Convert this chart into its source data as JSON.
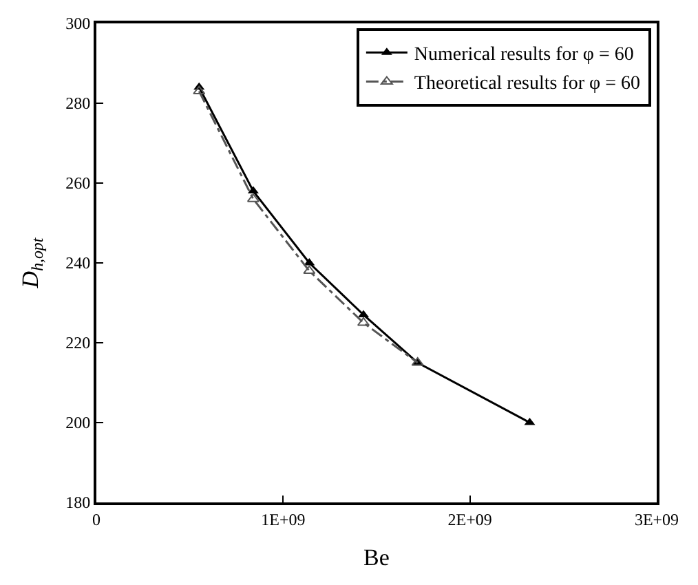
{
  "chart_data": {
    "type": "line",
    "xlabel": "Be",
    "ylabel": "D$_{h,opt}$",
    "xlim": [
      0,
      3000000000
    ],
    "xticks": [
      0,
      {
        "value": 1000000000,
        "label": "1E+09"
      },
      {
        "value": 2000000000,
        "label": "2E+09"
      },
      {
        "value": 3000000000,
        "label": "3E+09"
      }
    ],
    "ylim": [
      180,
      300
    ],
    "yticks": [
      180,
      200,
      220,
      240,
      260,
      280,
      300
    ],
    "legend": "top right",
    "marker": "triangle",
    "series": [
      {
        "name": "Numerical results for φ = 60",
        "color": "#000000",
        "line_style": "solid",
        "x": [
          550000000,
          840000000,
          1140000000,
          1430000000,
          1720000000,
          2320000000
        ],
        "values": [
          284,
          258,
          240,
          227,
          215,
          200
        ]
      },
      {
        "name": "Theoretical results for φ = 60",
        "color": "#555555",
        "line_style": "dashed",
        "x": [
          550000000,
          840000000,
          1140000000,
          1430000000,
          1720000000
        ],
        "values": [
          283,
          256,
          238,
          225,
          215
        ]
      }
    ]
  }
}
